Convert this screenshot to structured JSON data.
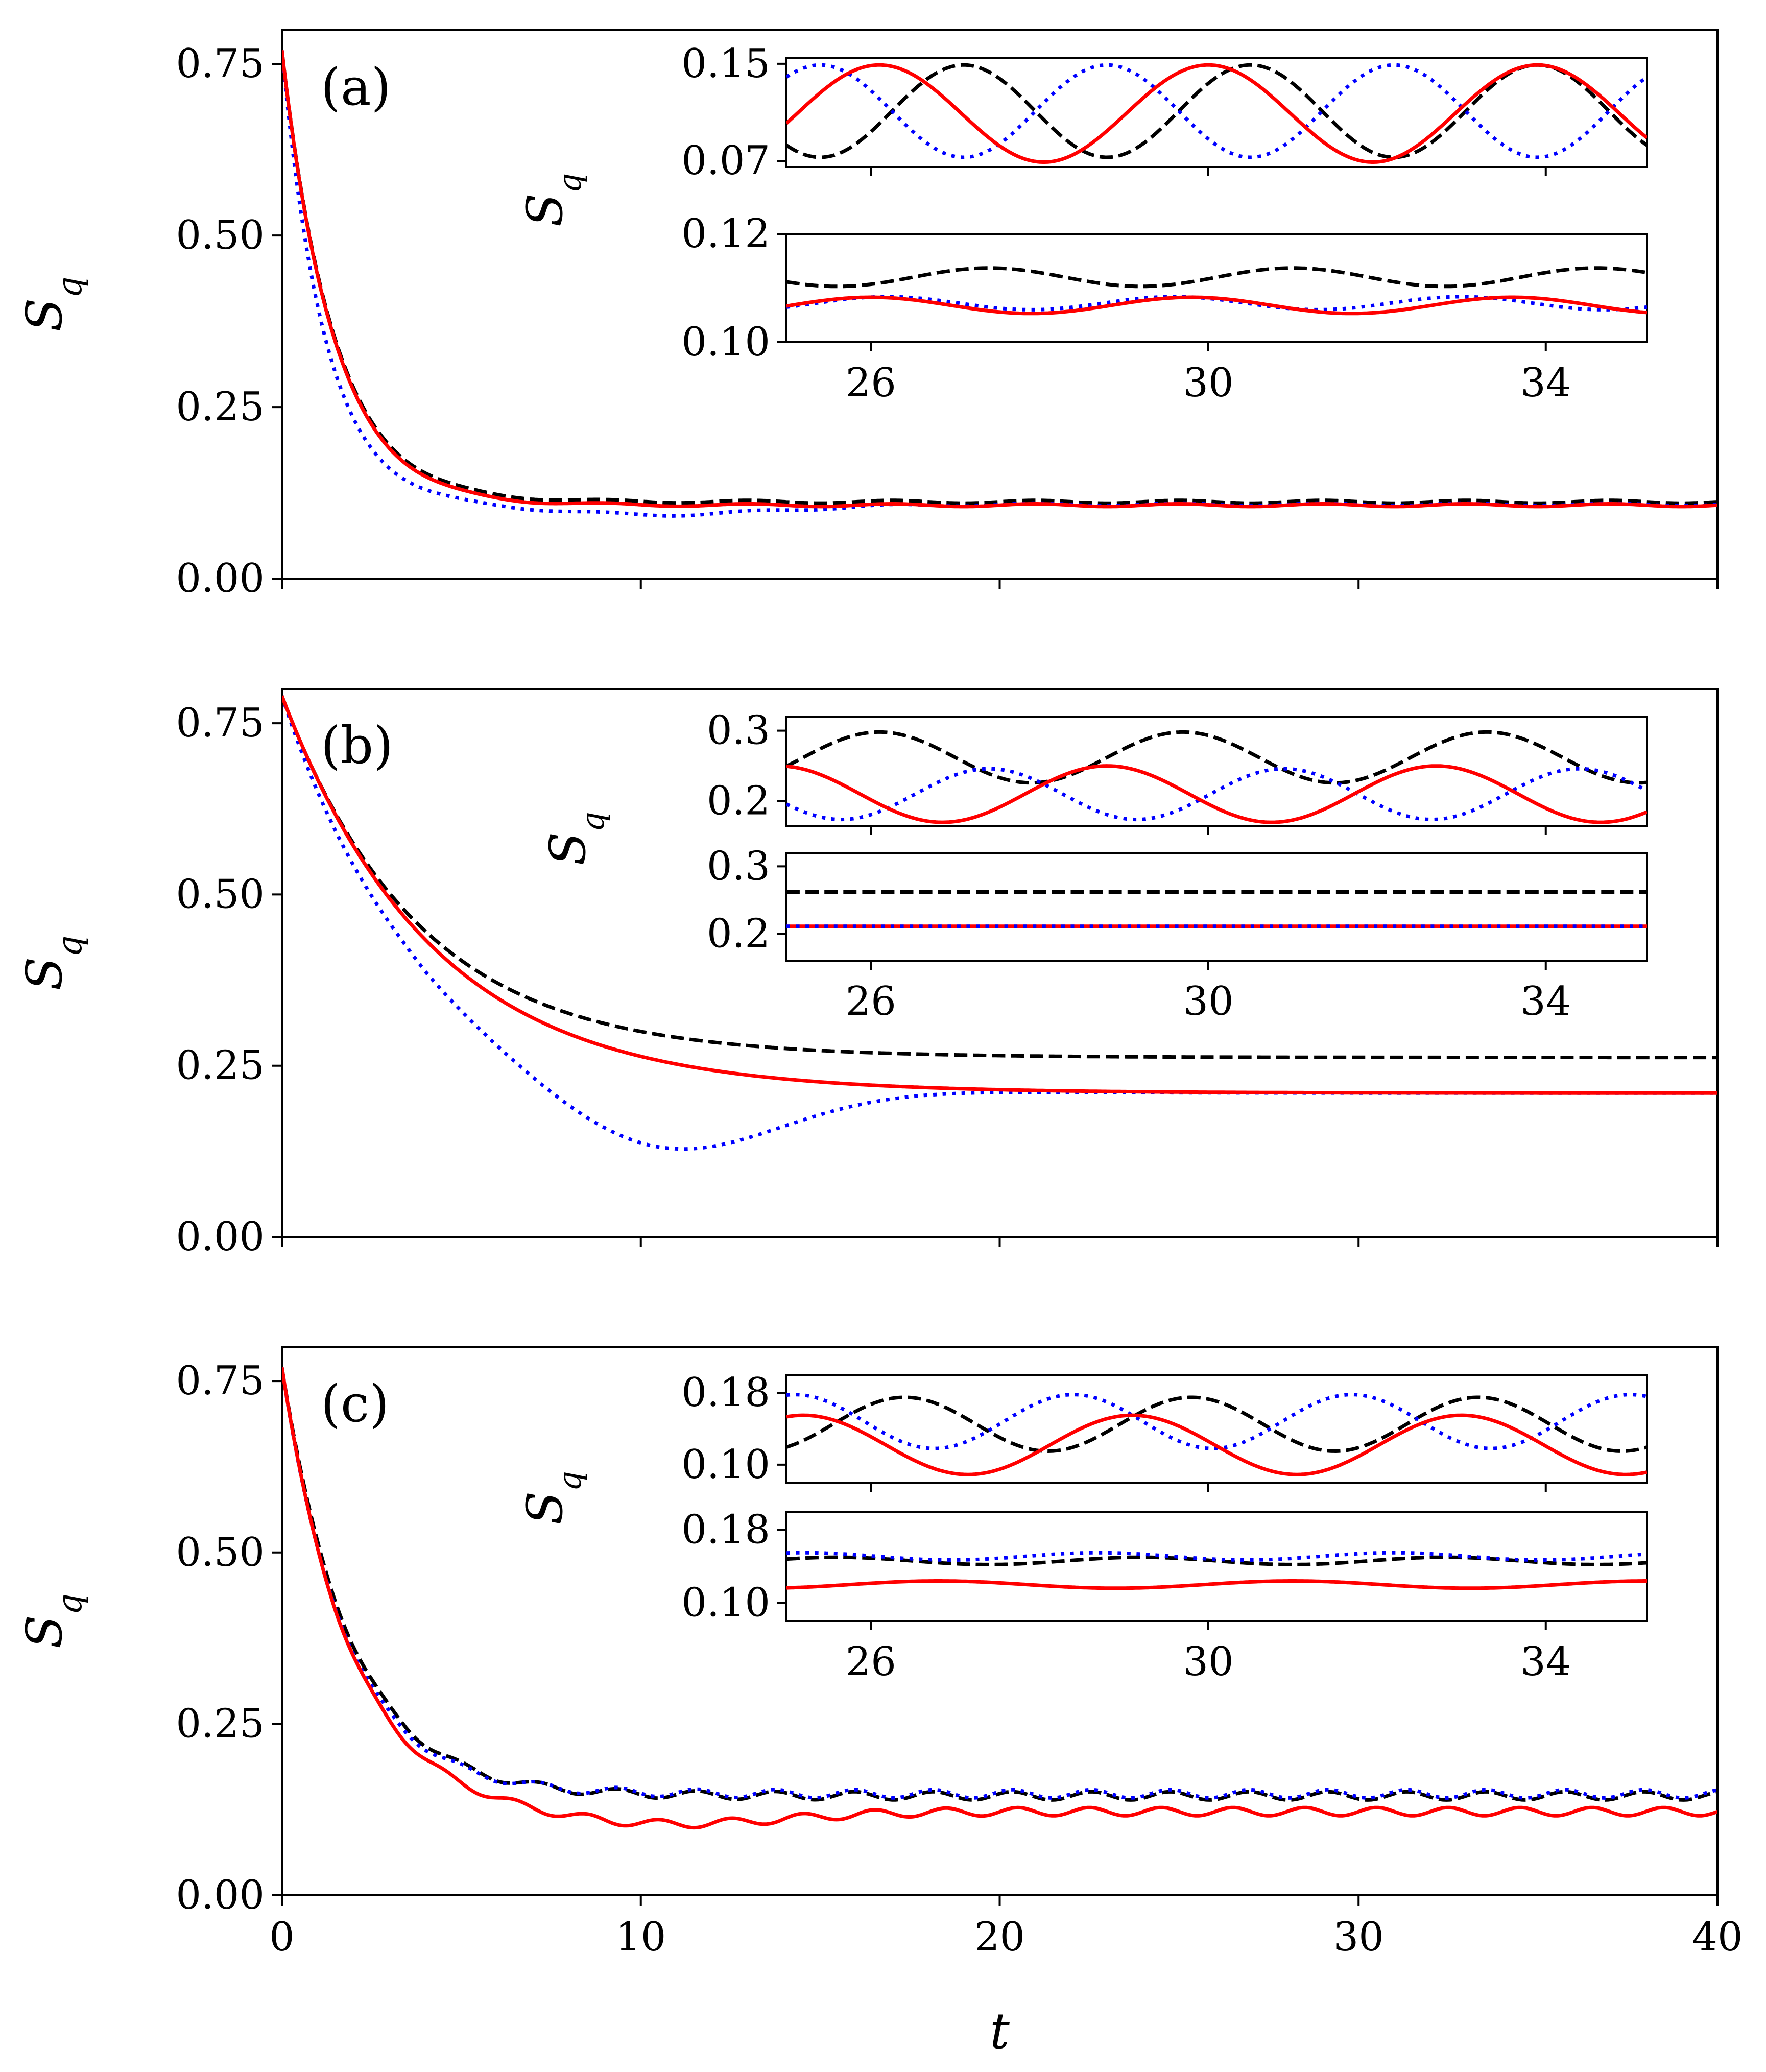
{
  "figure": {
    "xlabel": "t",
    "ylabel": "S",
    "ylabel_sub": "q"
  },
  "series_styles": [
    {
      "name": "black-dashed",
      "color": "#000000",
      "dash": "dashed"
    },
    {
      "name": "blue-dotted",
      "color": "#0000ff",
      "dash": "dotted"
    },
    {
      "name": "red-solid",
      "color": "#ff0000",
      "dash": "solid"
    }
  ],
  "chart_data": [
    {
      "type": "line",
      "panel": "(a)",
      "xlim": [
        0,
        40
      ],
      "ylim": [
        0,
        0.8
      ],
      "xticks": [
        0,
        10,
        20,
        30,
        40
      ],
      "xtick_labels": [
        "",
        "",
        "",
        "",
        ""
      ],
      "yticks": [
        0,
        0.25,
        0.5,
        0.75
      ],
      "ytick_labels": [
        "0.00",
        "0.25",
        "0.50",
        "0.75"
      ],
      "series": [
        {
          "name": "black-dashed",
          "s0": 0.77,
          "tau": 1.45,
          "s_inf": 0.112,
          "amp": 0.002,
          "period": 4.0,
          "dip": 0
        },
        {
          "name": "blue-dotted",
          "s0": 0.77,
          "tau": 1.2,
          "s_inf": 0.108,
          "amp": 0.002,
          "period": 4.0,
          "dip": 0.015
        },
        {
          "name": "red-solid",
          "s0": 0.77,
          "tau": 1.45,
          "s_inf": 0.107,
          "amp": 0.002,
          "period": 4.0,
          "dip": 0
        }
      ],
      "insets": [
        {
          "xlim": [
            25,
            35.2
          ],
          "ylim": [
            0.065,
            0.155
          ],
          "yticks": [
            0.07,
            0.15
          ],
          "ytick_labels": [
            "0.07",
            "0.15"
          ],
          "xticks": [
            26,
            30,
            34
          ],
          "xtick_labels": [
            "",
            "",
            ""
          ],
          "series": [
            {
              "name": "black-dashed",
              "mean": 0.111,
              "amp": 0.038,
              "period": 3.4,
              "phase": 27.1
            },
            {
              "name": "blue-dotted",
              "mean": 0.111,
              "amp": 0.038,
              "period": 3.4,
              "phase": 25.4
            },
            {
              "name": "red-solid",
              "mean": 0.109,
              "amp": 0.04,
              "period": 3.9,
              "phase": 26.1
            }
          ]
        },
        {
          "xlim": [
            25,
            35.2
          ],
          "ylim": [
            0.1,
            0.12
          ],
          "yticks": [
            0.1,
            0.12
          ],
          "ytick_labels": [
            "0.10",
            "0.12"
          ],
          "xticks": [
            26,
            30,
            34
          ],
          "xtick_labels": [
            "26",
            "30",
            "34"
          ],
          "series": [
            {
              "name": "black-dashed",
              "mean": 0.112,
              "amp": 0.0017,
              "period": 3.6,
              "phase": 27.4
            },
            {
              "name": "blue-dotted",
              "mean": 0.1072,
              "amp": 0.0012,
              "period": 3.4,
              "phase": 26.2
            },
            {
              "name": "red-solid",
              "mean": 0.1068,
              "amp": 0.0015,
              "period": 3.8,
              "phase": 26.0
            }
          ]
        }
      ]
    },
    {
      "type": "line",
      "panel": "(b)",
      "xlim": [
        0,
        40
      ],
      "ylim": [
        0,
        0.8
      ],
      "xticks": [
        0,
        10,
        20,
        30,
        40
      ],
      "xtick_labels": [
        "",
        "",
        "",
        "",
        ""
      ],
      "yticks": [
        0,
        0.25,
        0.5,
        0.75
      ],
      "ytick_labels": [
        "0.00",
        "0.25",
        "0.50",
        "0.75"
      ],
      "series": [
        {
          "name": "black-dashed",
          "s0": 0.79,
          "tau": 3.8,
          "s_inf": 0.262,
          "amp": 0,
          "period": 4.0,
          "dip": 0
        },
        {
          "name": "blue-dotted",
          "s0": 0.79,
          "tau": 3.6,
          "s_inf": 0.21,
          "amp": 0,
          "period": 4.0,
          "dip": 0.11
        },
        {
          "name": "red-solid",
          "s0": 0.79,
          "tau": 4.2,
          "s_inf": 0.21,
          "amp": 0,
          "period": 4.0,
          "dip": 0
        }
      ],
      "insets": [
        {
          "xlim": [
            25,
            35.2
          ],
          "ylim": [
            0.165,
            0.32
          ],
          "yticks": [
            0.2,
            0.3
          ],
          "ytick_labels": [
            "0.2",
            "0.3"
          ],
          "xticks": [
            26,
            30,
            34
          ],
          "xtick_labels": [
            "",
            "",
            ""
          ],
          "series": [
            {
              "name": "black-dashed",
              "mean": 0.262,
              "amp": 0.036,
              "period": 3.6,
              "phase": 26.1
            },
            {
              "name": "blue-dotted",
              "mean": 0.21,
              "amp": 0.036,
              "period": 3.5,
              "phase": 27.4
            },
            {
              "name": "red-solid",
              "mean": 0.21,
              "amp": 0.04,
              "period": 3.9,
              "phase": 24.9
            }
          ]
        },
        {
          "xlim": [
            25,
            35.2
          ],
          "ylim": [
            0.16,
            0.32
          ],
          "yticks": [
            0.2,
            0.3
          ],
          "ytick_labels": [
            "0.2",
            "0.3"
          ],
          "xticks": [
            26,
            30,
            34
          ],
          "xtick_labels": [
            "26",
            "30",
            "34"
          ],
          "series": [
            {
              "name": "black-dashed",
              "mean": 0.262,
              "amp": 0,
              "period": 4.0,
              "phase": 0
            },
            {
              "name": "red-solid",
              "mean": 0.211,
              "amp": 0,
              "period": 4.0,
              "phase": 0
            },
            {
              "name": "blue-dotted",
              "mean": 0.211,
              "amp": 0,
              "period": 4.0,
              "phase": 0
            }
          ]
        }
      ]
    },
    {
      "type": "line",
      "panel": "(c)",
      "xlim": [
        0,
        40
      ],
      "ylim": [
        0,
        0.8
      ],
      "xticks": [
        0,
        10,
        20,
        30,
        40
      ],
      "xtick_labels": [
        "0",
        "10",
        "20",
        "30",
        "40"
      ],
      "yticks": [
        0,
        0.25,
        0.5,
        0.75
      ],
      "ytick_labels": [
        "0.00",
        "0.25",
        "0.50",
        "0.75"
      ],
      "series": [
        {
          "name": "black-dashed",
          "s0": 0.77,
          "tau": 1.9,
          "s_inf": 0.145,
          "amp": 0.006,
          "period": 2.2,
          "dip": 0
        },
        {
          "name": "blue-dotted",
          "s0": 0.77,
          "tau": 1.8,
          "s_inf": 0.148,
          "amp": 0.006,
          "period": 2.2,
          "dip": 0
        },
        {
          "name": "red-solid",
          "s0": 0.77,
          "tau": 1.9,
          "s_inf": 0.122,
          "amp": 0.006,
          "period": 2.0,
          "dip": 0.02
        }
      ],
      "insets": [
        {
          "xlim": [
            25,
            35.2
          ],
          "ylim": [
            0.08,
            0.2
          ],
          "yticks": [
            0.1,
            0.18
          ],
          "ytick_labels": [
            "0.10",
            "0.18"
          ],
          "xticks": [
            26,
            30,
            34
          ],
          "xtick_labels": [
            "",
            "",
            ""
          ],
          "series": [
            {
              "name": "black-dashed",
              "mean": 0.145,
              "amp": 0.03,
              "period": 3.4,
              "phase": 26.4
            },
            {
              "name": "blue-dotted",
              "mean": 0.148,
              "amp": 0.03,
              "period": 3.3,
              "phase": 25.1
            },
            {
              "name": "red-solid",
              "mean": 0.122,
              "amp": 0.033,
              "period": 3.9,
              "phase": 25.2
            }
          ]
        },
        {
          "xlim": [
            25,
            35.2
          ],
          "ylim": [
            0.08,
            0.2
          ],
          "yticks": [
            0.1,
            0.18
          ],
          "ytick_labels": [
            "0.10",
            "0.18"
          ],
          "xticks": [
            26,
            30,
            34
          ],
          "xtick_labels": [
            "26",
            "30",
            "34"
          ],
          "series": [
            {
              "name": "black-dashed",
              "mean": 0.146,
              "amp": 0.004,
              "period": 3.6,
              "phase": 25.6
            },
            {
              "name": "blue-dotted",
              "mean": 0.151,
              "amp": 0.004,
              "period": 3.5,
              "phase": 25.2
            },
            {
              "name": "red-solid",
              "mean": 0.12,
              "amp": 0.004,
              "period": 4.2,
              "phase": 26.8
            }
          ]
        }
      ]
    }
  ]
}
